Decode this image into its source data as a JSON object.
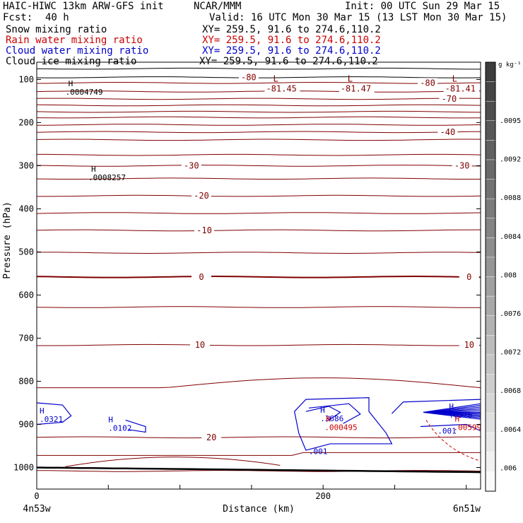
{
  "header": {
    "model": "HAIC-HIWC 13km ARW-GFS init",
    "org": "NCAR/MMM",
    "init": "Init: 00 UTC Sun 29 Mar 15",
    "fcst_label": "Fcst:",
    "fcst_value": "40 h",
    "valid": "Valid: 16 UTC Mon 30 Mar 15 (13 LST Mon 30 Mar 15)",
    "fields": [
      {
        "name": "Snow mixing ratio",
        "xy": "XY= 259.5, 91.6 to 274.6,110.2",
        "color": "#000000"
      },
      {
        "name": "Rain water mixing ratio",
        "xy": "XY= 259.5, 91.6 to 274.6,110.2",
        "color": "#cc0000"
      },
      {
        "name": "Cloud water mixing ratio",
        "xy": "XY= 259.5, 91.6 to 274.6,110.2",
        "color": "#0000cc"
      },
      {
        "name": "Cloud ice mixing ratio",
        "xy": "XY= 259.5, 91.6 to 274.6,110.2",
        "color": "#000000"
      }
    ]
  },
  "chart_data": {
    "type": "cross-section",
    "xlabel": "Distance (km)",
    "ylabel": "Pressure (hPa)",
    "xlim": [
      0,
      310
    ],
    "ylim": [
      1050,
      60
    ],
    "x_ticks": [
      0,
      200
    ],
    "y_ticks": [
      100,
      200,
      300,
      400,
      500,
      600,
      700,
      800,
      900,
      1000
    ],
    "endpoints": {
      "left": "4n53w",
      "right": "6n51w"
    },
    "temperature_contours": {
      "color": "#800000",
      "levels_p": [
        75,
        95,
        108,
        128,
        145,
        160,
        175,
        188,
        205,
        222,
        240,
        275,
        300,
        330,
        370,
        410,
        450,
        502,
        558,
        628,
        716,
        815,
        930,
        972,
        1008
      ],
      "labels": [
        {
          "text": "-80",
          "x": 148,
          "p": 95
        },
        {
          "text": "-80",
          "x": 273,
          "p": 108
        },
        {
          "text": "-70",
          "x": 288,
          "p": 145
        },
        {
          "text": "-40",
          "x": 287,
          "p": 222
        },
        {
          "text": "-30",
          "x": 108,
          "p": 300
        },
        {
          "text": "-30",
          "x": 297,
          "p": 300
        },
        {
          "text": "-20",
          "x": 115,
          "p": 370
        },
        {
          "text": "-10",
          "x": 117,
          "p": 450
        },
        {
          "text": "0",
          "x": 115,
          "p": 558
        },
        {
          "text": "0",
          "x": 302,
          "p": 558
        },
        {
          "text": "10",
          "x": 114,
          "p": 716
        },
        {
          "text": "10",
          "x": 302,
          "p": 716
        },
        {
          "text": "20",
          "x": 122,
          "p": 930
        }
      ],
      "extrema": [
        {
          "mark": "L",
          "value": "-81.45",
          "x": 172,
          "p": 108
        },
        {
          "mark": "L",
          "value": "-81.47",
          "x": 224,
          "p": 108
        },
        {
          "mark": "L",
          "value": "-81.41",
          "x": 297,
          "p": 108
        }
      ]
    },
    "ice_maxima": [
      {
        "mark": "H",
        "value": ".0004749",
        "x": 22,
        "p": 119
      },
      {
        "mark": "H",
        "value": ".0008257",
        "x": 38,
        "p": 317
      }
    ],
    "cloud_water": {
      "color": "#0000cc",
      "maxima": [
        {
          "mark": "H",
          "value": ".0321",
          "x": 2,
          "p": 878
        },
        {
          "mark": "H",
          "value": ".0102",
          "x": 50,
          "p": 898
        },
        {
          "mark": "H",
          "value": ".3686",
          "x": 198,
          "p": 876
        },
        {
          "mark": "H",
          "value": ".6526",
          "x": 288,
          "p": 868
        }
      ],
      "labels": [
        {
          "text": ".001",
          "x": 190,
          "p": 962
        },
        {
          "text": ".001",
          "x": 280,
          "p": 915
        }
      ]
    },
    "rain_water": {
      "color": "#cc0000",
      "maxima": [
        {
          "mark": "H",
          "value": ".000495",
          "x": 202,
          "p": 897
        },
        {
          "mark": "H",
          "value": ".00599",
          "x": 292,
          "p": 897
        }
      ]
    },
    "colorbar": {
      "units": "g kg⁻¹",
      "tick_labels": [
        ".0095",
        ".0092",
        ".0088",
        ".0084",
        ".008",
        ".0076",
        ".0072",
        ".0068",
        ".0064",
        ".006"
      ]
    }
  }
}
